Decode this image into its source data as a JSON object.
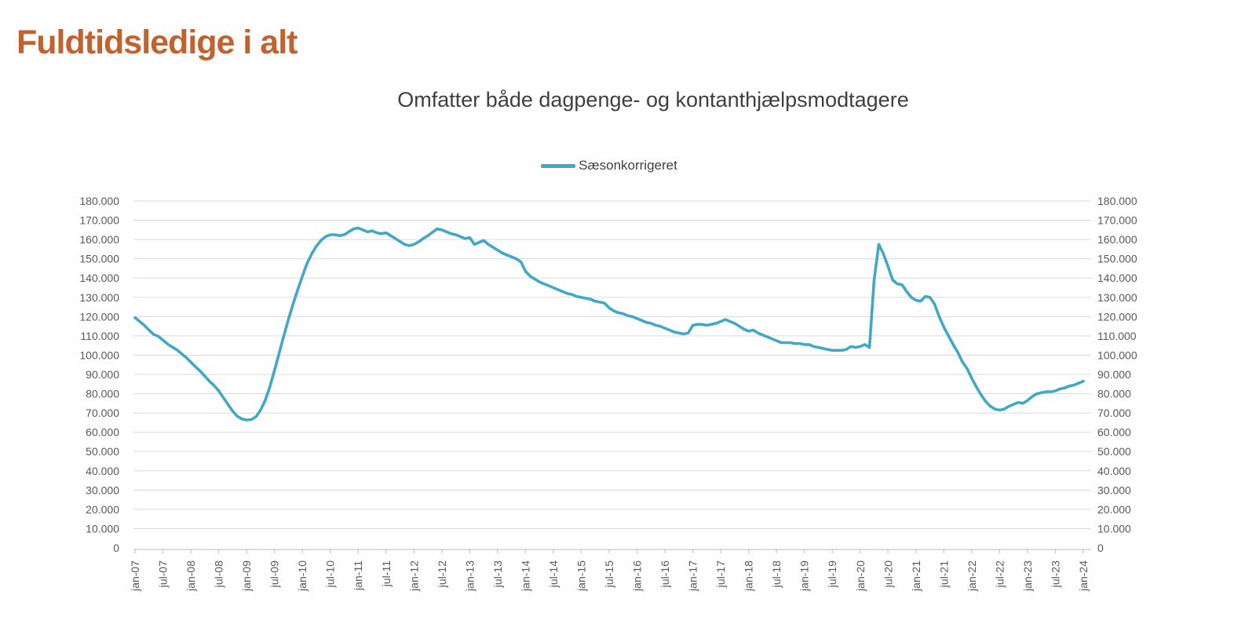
{
  "header": {
    "title": "Fuldtidsledige i alt",
    "title_color": "#C2622E"
  },
  "chart": {
    "subtitle": "Omfatter både dagpenge- og kontanthjælpsmodtagere",
    "subtitle_color": "#3F3F3F",
    "legend": {
      "label": "Sæsonkorrigeret"
    },
    "grid_color": "#DADADA",
    "axis_line_color": "#C6C6C6",
    "axis_label_color": "#595959"
  },
  "chart_data": {
    "type": "line",
    "title": "Omfatter både dagpenge- og kontanthjælpsmodtagere",
    "x_unit": "month",
    "x_start": "jan-07",
    "x_end": "jan-24",
    "x_tick_labels": [
      "jan-07",
      "jul-07",
      "jan-08",
      "jul-08",
      "jan-09",
      "jul-09",
      "jan-10",
      "jul-10",
      "jan-11",
      "jul-11",
      "jan-12",
      "jul-12",
      "jan-13",
      "jul-13",
      "jan-14",
      "jul-14",
      "jan-15",
      "jul-15",
      "jan-16",
      "jul-16",
      "jan-17",
      "jul-17",
      "jan-18",
      "jul-18",
      "jan-19",
      "jul-19",
      "jan-20",
      "jul-20",
      "jan-21",
      "jul-21",
      "jan-22",
      "jul-22",
      "jan-23",
      "jul-23",
      "jan-24"
    ],
    "x_ticks_every_n_months": 6,
    "y_tick_labels_bottom_to_top": [
      "0",
      "10.000",
      "20.000",
      "30.000",
      "40.000",
      "50.000",
      "60.000",
      "70.000",
      "80.000",
      "90.000",
      "100.000",
      "110.000",
      "120.000",
      "130.000",
      "140.000",
      "150.000",
      "160.000",
      "170.000",
      "180.000"
    ],
    "ylim": [
      0,
      180000
    ],
    "y_axis_sides": [
      "left",
      "right"
    ],
    "grid": "horizontal",
    "legend_position": "top-center",
    "series": [
      {
        "name": "Sæsonkorrigeret",
        "color": "#43A7C6",
        "values": [
          119500,
          117500,
          115500,
          113000,
          110800,
          109800,
          107800,
          105800,
          104200,
          102800,
          100800,
          98800,
          96400,
          94000,
          91800,
          89200,
          86500,
          84300,
          81500,
          78000,
          74500,
          71000,
          68300,
          66900,
          66400,
          66600,
          68000,
          71500,
          76500,
          83500,
          92000,
          101000,
          110000,
          118500,
          126500,
          134000,
          141000,
          147500,
          152500,
          156500,
          159500,
          161500,
          162500,
          162500,
          162000,
          162500,
          164000,
          165500,
          166000,
          165000,
          164000,
          164500,
          163500,
          163000,
          163500,
          162000,
          160500,
          159000,
          157500,
          156800,
          157500,
          158800,
          160500,
          162000,
          163800,
          165500,
          165000,
          164000,
          163000,
          162500,
          161500,
          160500,
          161000,
          157500,
          158500,
          159500,
          157500,
          156000,
          154500,
          153000,
          152000,
          151000,
          150000,
          148500,
          143500,
          141000,
          139500,
          138000,
          137000,
          136000,
          135000,
          134000,
          133000,
          132000,
          131500,
          130500,
          130000,
          129500,
          129000,
          128000,
          127500,
          127000,
          124500,
          123000,
          122000,
          121500,
          120500,
          120000,
          119000,
          118000,
          117000,
          116500,
          115500,
          115000,
          114000,
          113000,
          112000,
          111500,
          111000,
          111500,
          115500,
          116000,
          116000,
          115500,
          116000,
          116500,
          117500,
          118500,
          117500,
          116500,
          115000,
          113500,
          112500,
          113000,
          111500,
          110500,
          109500,
          108500,
          107500,
          106500,
          106500,
          106500,
          106000,
          106000,
          105500,
          105500,
          104500,
          104000,
          103500,
          103000,
          102500,
          102500,
          102500,
          103000,
          104500,
          104000,
          104500,
          105500,
          104000,
          139000,
          157500,
          152500,
          146000,
          139000,
          137000,
          136500,
          133000,
          130000,
          128500,
          128000,
          130500,
          130000,
          126500,
          120000,
          114500,
          110000,
          105500,
          101500,
          96500,
          93000,
          88000,
          83500,
          79500,
          76000,
          73500,
          72000,
          71500,
          72000,
          73500,
          74500,
          75500,
          75000,
          76500,
          78500,
          80000,
          80500,
          81000,
          81000,
          81500,
          82500,
          83000,
          84000,
          84500,
          85500,
          86500
        ]
      }
    ]
  }
}
